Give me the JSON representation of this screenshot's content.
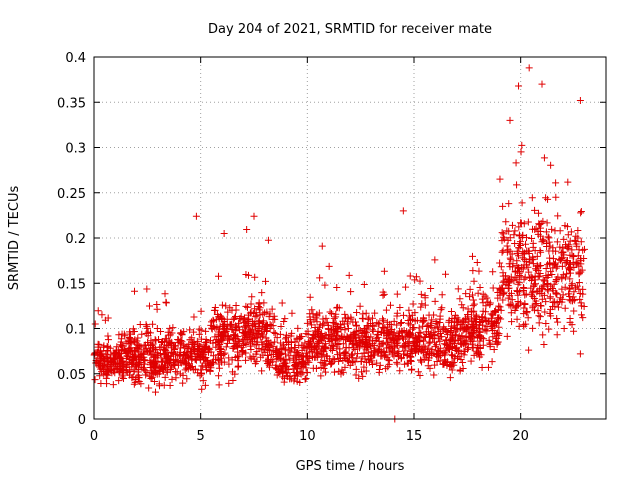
{
  "chart_data": {
    "type": "scatter",
    "title": "Day 204 of 2021, SRMTID for receiver mate",
    "xlabel": "GPS time / hours",
    "ylabel": "SRMTID / TECUs",
    "xlim": [
      0,
      24
    ],
    "ylim": [
      0,
      0.4
    ],
    "x_ticks": [
      0,
      5,
      10,
      15,
      20
    ],
    "x_tick_labels": [
      "0",
      "5",
      "10",
      "15",
      "20"
    ],
    "y_ticks": [
      0,
      0.05,
      0.1,
      0.15,
      0.2,
      0.25,
      0.3,
      0.35,
      0.4
    ],
    "y_tick_labels": [
      "0",
      "0.05",
      "0.1",
      "0.15",
      "0.2",
      "0.25",
      "0.3",
      "0.35",
      "0.4"
    ],
    "grid": true,
    "marker": "+",
    "marker_color": "#e00000",
    "series_color": "#e00000",
    "annotated_points": [
      {
        "x": 4.8,
        "y": 0.224
      },
      {
        "x": 6.1,
        "y": 0.205
      },
      {
        "x": 7.5,
        "y": 0.224
      },
      {
        "x": 10.7,
        "y": 0.191
      },
      {
        "x": 14.5,
        "y": 0.23
      },
      {
        "x": 14.1,
        "y": 0.0
      },
      {
        "x": 19.5,
        "y": 0.33
      },
      {
        "x": 19.9,
        "y": 0.368
      },
      {
        "x": 20.4,
        "y": 0.388
      },
      {
        "x": 21.0,
        "y": 0.37
      },
      {
        "x": 22.8,
        "y": 0.352
      },
      {
        "x": 22.8,
        "y": 0.072
      }
    ],
    "trend_segments": [
      {
        "x_from": 0.0,
        "x_to": 1.5,
        "median_y": 0.065,
        "spread": 0.035
      },
      {
        "x_from": 1.5,
        "x_to": 5.5,
        "median_y": 0.07,
        "spread": 0.045
      },
      {
        "x_from": 5.5,
        "x_to": 8.5,
        "median_y": 0.09,
        "spread": 0.06
      },
      {
        "x_from": 8.5,
        "x_to": 10.0,
        "median_y": 0.065,
        "spread": 0.04
      },
      {
        "x_from": 10.0,
        "x_to": 14.0,
        "median_y": 0.085,
        "spread": 0.05
      },
      {
        "x_from": 14.0,
        "x_to": 17.5,
        "median_y": 0.085,
        "spread": 0.05
      },
      {
        "x_from": 17.5,
        "x_to": 19.0,
        "median_y": 0.1,
        "spread": 0.05
      },
      {
        "x_from": 19.0,
        "x_to": 23.0,
        "median_y": 0.16,
        "spread": 0.09
      }
    ]
  }
}
